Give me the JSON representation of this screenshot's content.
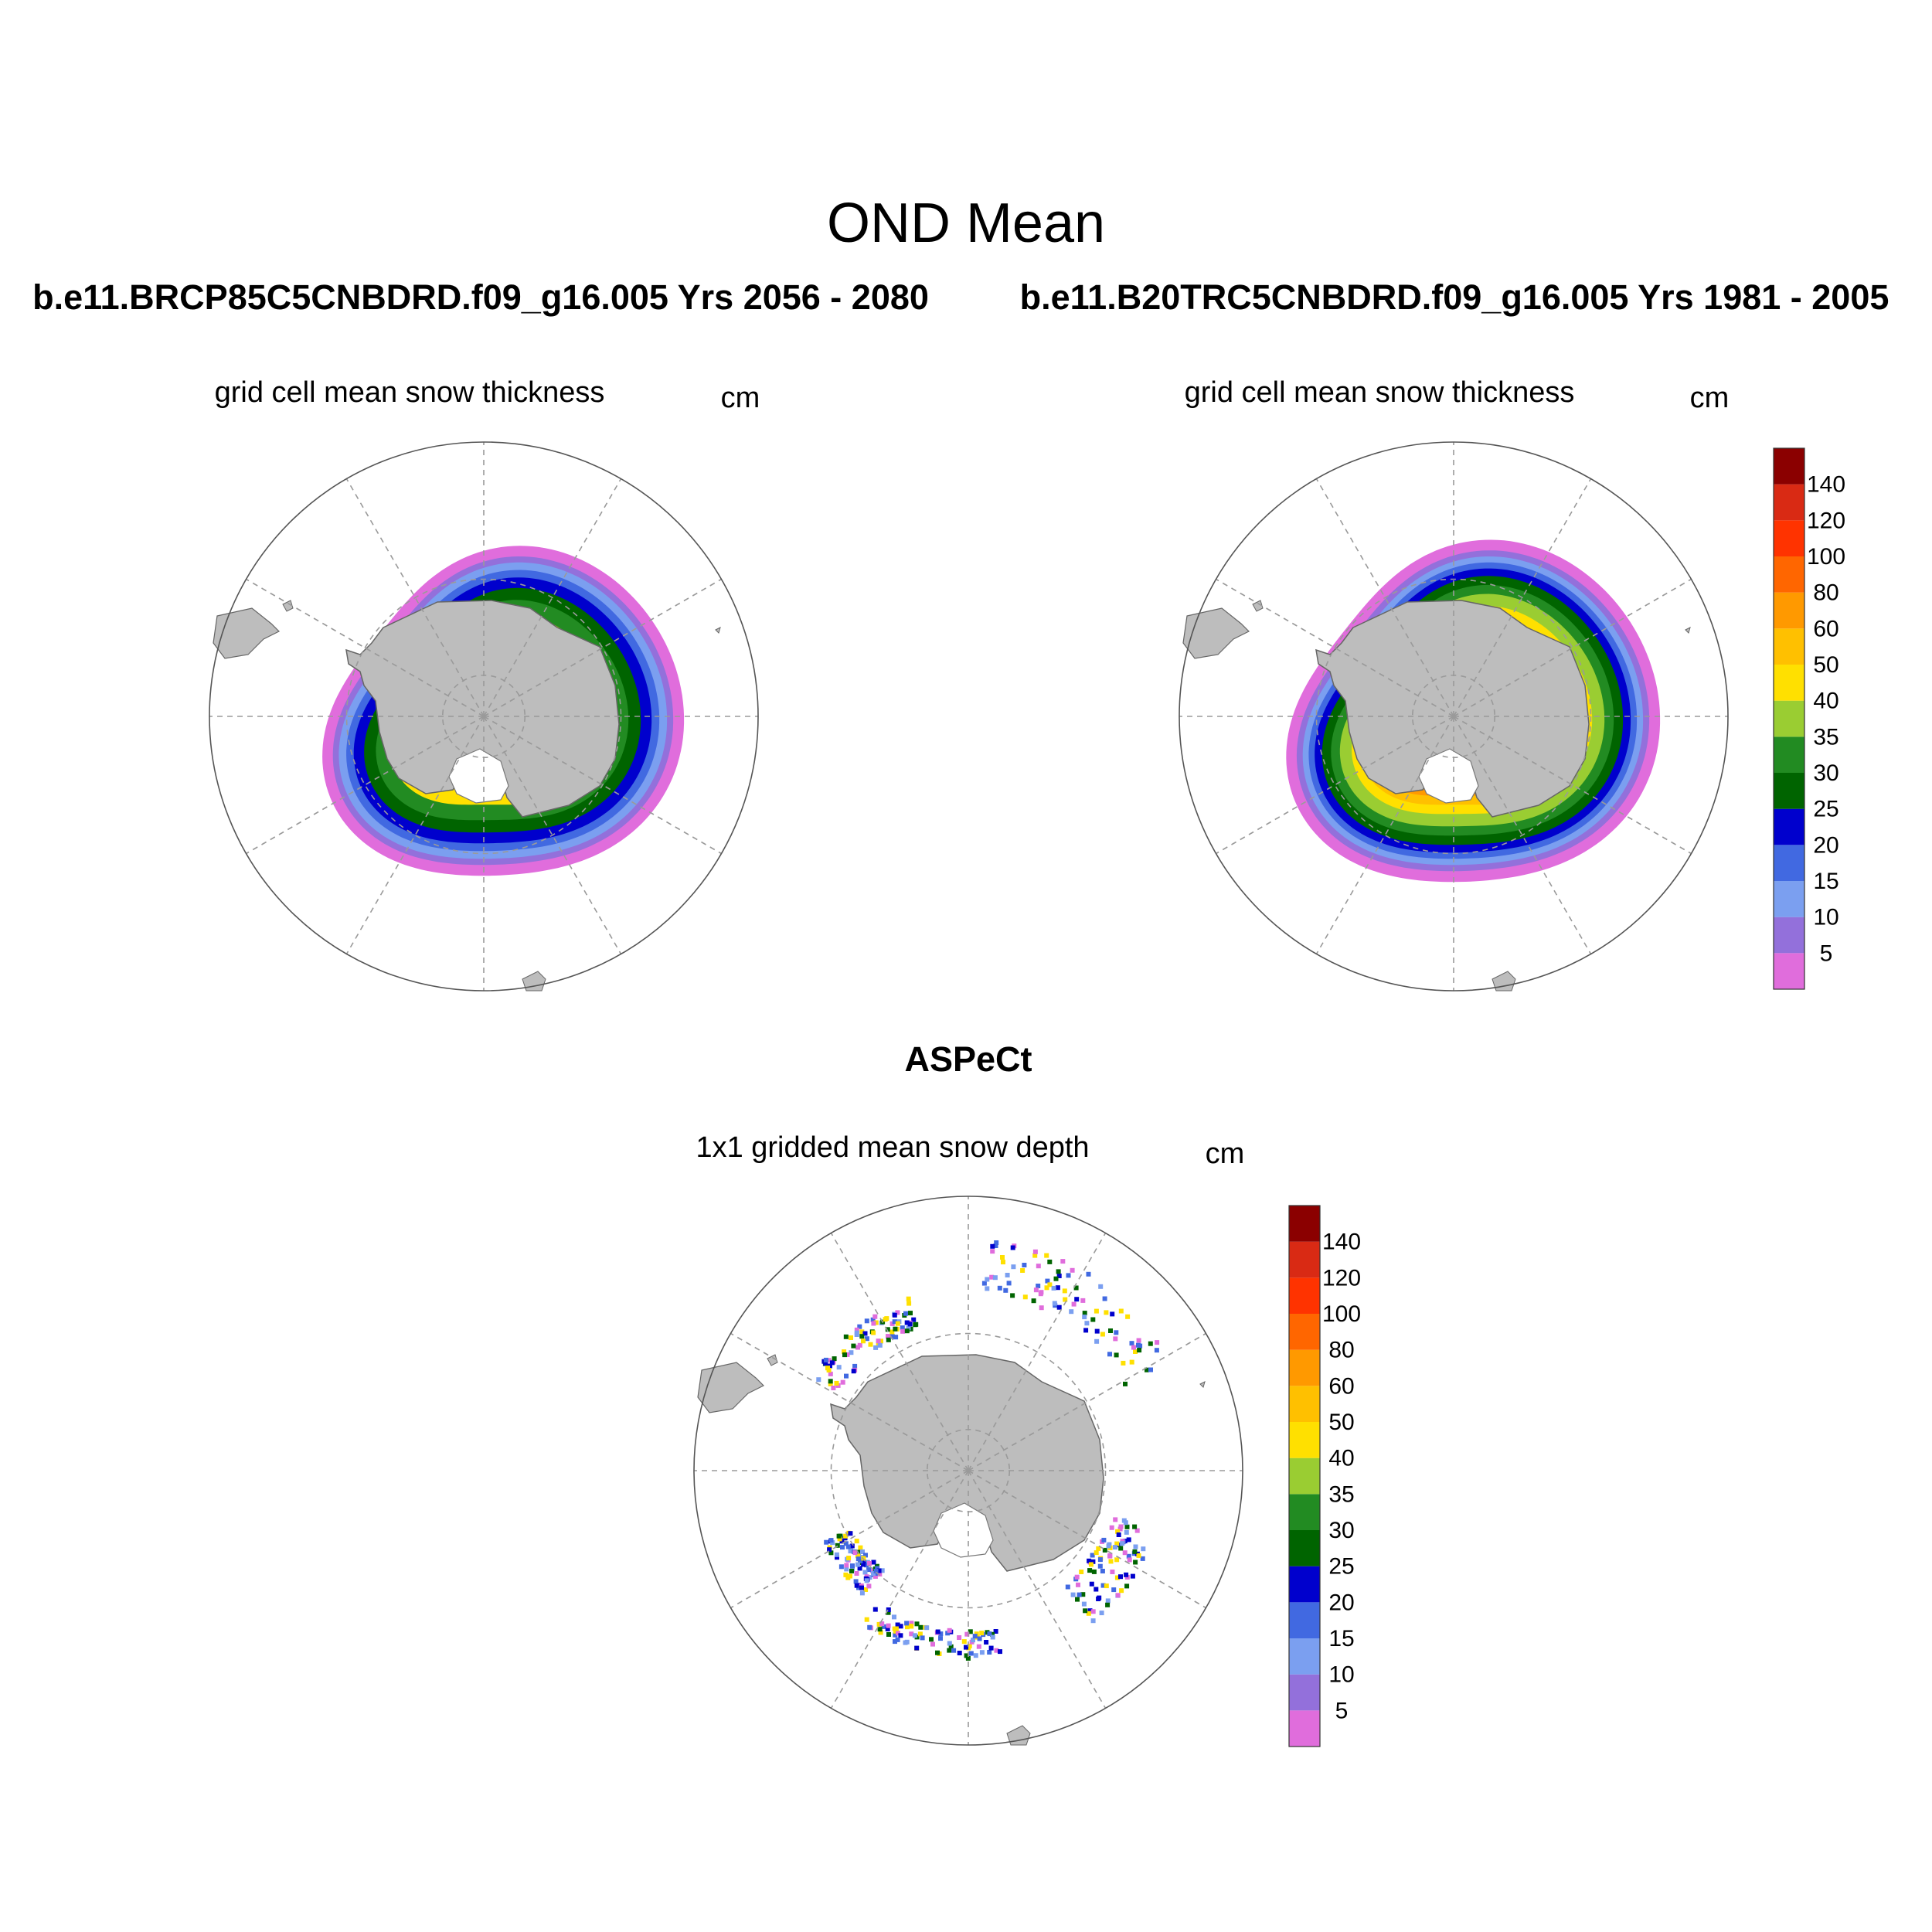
{
  "page": {
    "main_title": "OND Mean",
    "case_left": "b.e11.BRCP85C5CNBDRD.f09_g16.005  Yrs 2056 - 2080",
    "case_right": "b.e11.B20TRC5CNBDRD.f09_g16.005  Yrs 1981 - 2005",
    "obs_title": "ASPeCt"
  },
  "panels": [
    {
      "id": "rcp85",
      "subtitle": "grid cell mean snow thickness",
      "units": "cm"
    },
    {
      "id": "historical",
      "subtitle": "grid cell mean snow thickness",
      "units": "cm"
    },
    {
      "id": "aspect",
      "subtitle": "1x1 gridded mean snow depth",
      "units": "cm"
    }
  ],
  "colorbar": {
    "levels": [
      "5",
      "10",
      "15",
      "20",
      "25",
      "30",
      "35",
      "40",
      "50",
      "60",
      "80",
      "100",
      "120",
      "140"
    ],
    "colors": [
      "#e06ddc",
      "#9370db",
      "#7b9ff0",
      "#4169e1",
      "#0000cd",
      "#006400",
      "#228b22",
      "#9acd32",
      "#ffe000",
      "#ffc000",
      "#ff9900",
      "#ff6600",
      "#ff3300",
      "#d92a14",
      "#8b0000"
    ]
  },
  "map_colors": {
    "land": "#bdbdbd",
    "ocean": "#ffffff",
    "grid": "#9a9a9a"
  }
}
